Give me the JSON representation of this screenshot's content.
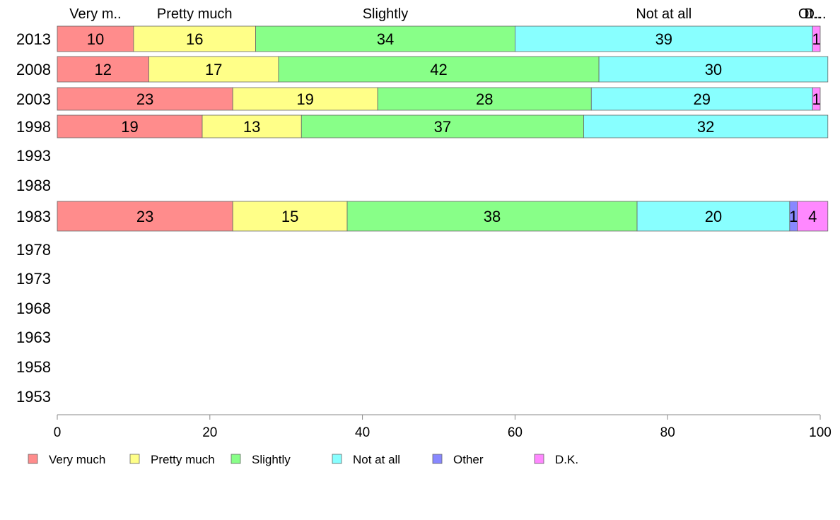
{
  "chart_data": {
    "type": "bar",
    "orientation": "horizontal",
    "stacked": true,
    "categories": [
      "2013",
      "2008",
      "2003",
      "1998",
      "1993",
      "1988",
      "1983",
      "1978",
      "1973",
      "1968",
      "1963",
      "1958",
      "1953"
    ],
    "series": [
      {
        "name": "Very much",
        "color": "#ff8c8c",
        "values": [
          10,
          12,
          23,
          19,
          null,
          null,
          23,
          null,
          null,
          null,
          null,
          null,
          null
        ]
      },
      {
        "name": "Pretty much",
        "color": "#ffff88",
        "values": [
          16,
          17,
          19,
          13,
          null,
          null,
          15,
          null,
          null,
          null,
          null,
          null,
          null
        ]
      },
      {
        "name": "Slightly",
        "color": "#88ff88",
        "values": [
          34,
          42,
          28,
          37,
          null,
          null,
          38,
          null,
          null,
          null,
          null,
          null,
          null
        ]
      },
      {
        "name": "Not at all",
        "color": "#88ffff",
        "values": [
          39,
          30,
          29,
          32,
          null,
          null,
          20,
          null,
          null,
          null,
          null,
          null,
          null
        ]
      },
      {
        "name": "Other",
        "color": "#8888ff",
        "values": [
          0,
          0,
          0,
          0,
          null,
          null,
          1,
          null,
          null,
          null,
          null,
          null,
          null
        ]
      },
      {
        "name": "D.K.",
        "color": "#ff88ff",
        "values": [
          1,
          0,
          1,
          0,
          null,
          null,
          4,
          null,
          null,
          null,
          null,
          null,
          null
        ]
      }
    ],
    "top_labels": [
      "Very m..",
      "Pretty much",
      "Slightly",
      "Not at all",
      "Ot..",
      "D..."
    ],
    "xlim": [
      0,
      100
    ],
    "xticks": [
      0,
      20,
      40,
      60,
      80,
      100
    ],
    "legend_position": "bottom",
    "grid": false
  }
}
